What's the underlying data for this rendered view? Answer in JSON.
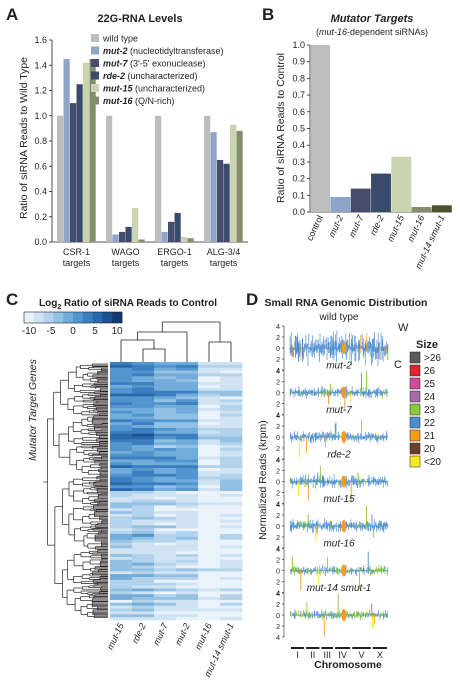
{
  "panels": {
    "A": {
      "letter": "A",
      "chart_data": {
        "type": "bar",
        "title": "22G-RNA Levels",
        "ylabel": "Ratio of siRNA Reads to Wild Type",
        "ylim": [
          0,
          1.6
        ],
        "yticks": [
          "0.0",
          "0.2",
          "0.4",
          "0.6",
          "0.8",
          "1.0",
          "1.2",
          "1.4",
          "1.6"
        ],
        "categories": [
          {
            "line1": "CSR-1",
            "line2": "targets"
          },
          {
            "line1": "WAGO",
            "line2": "targets"
          },
          {
            "line1": "ERGO-1",
            "line2": "targets"
          },
          {
            "line1": "ALG-3/4",
            "line2": "targets"
          }
        ],
        "series": [
          {
            "name": "wild type",
            "gene": "",
            "desc": "",
            "color": "#bdbdbd",
            "values": [
              1.0,
              1.0,
              1.0,
              1.0
            ]
          },
          {
            "name": "mut-2 (nucleotidyltransferase)",
            "gene": "mut-2",
            "desc": " (nucleotidyltransferase)",
            "color": "#8ea4c8",
            "values": [
              1.45,
              0.06,
              0.08,
              0.87
            ]
          },
          {
            "name": "mut-7 (3'-5' exonuclease)",
            "gene": "mut-7",
            "desc": " (3'-5' exonuclease)",
            "color": "#454d6b",
            "values": [
              1.1,
              0.08,
              0.16,
              0.65
            ]
          },
          {
            "name": "rde-2 (uncharacterized)",
            "gene": "rde-2",
            "desc": " (uncharacterized)",
            "color": "#3a4a6b",
            "values": [
              1.25,
              0.12,
              0.23,
              0.62
            ]
          },
          {
            "name": "mut-15 (uncharacterized)",
            "gene": "mut-15",
            "desc": " (uncharacterized)",
            "color": "#c9d4b0",
            "values": [
              1.42,
              0.27,
              0.04,
              0.93
            ]
          },
          {
            "name": "mut-16 (Q/N-rich)",
            "gene": "mut-16",
            "desc": " (Q/N-rich)",
            "color": "#858d6c",
            "values": [
              1.45,
              0.02,
              0.03,
              0.88
            ]
          }
        ]
      }
    },
    "B": {
      "letter": "B",
      "chart_data": {
        "type": "bar",
        "title": "Mutator Targets",
        "subtitle": {
          "gene": "mut-16",
          "text": "-dependent siRNAs)"
        },
        "ylabel": "Ratio of siRNA Reads to Control",
        "ylim": [
          0,
          1.0
        ],
        "yticks": [
          "0.0",
          "0.1",
          "0.2",
          "0.3",
          "0.4",
          "0.5",
          "0.6",
          "0.7",
          "0.8",
          "0.9",
          "1.0"
        ],
        "categories": [
          "control",
          "mut-2",
          "mut-7",
          "rde-2",
          "mut-15",
          "mut-16",
          "mut-14 smut-1"
        ],
        "values": [
          1.0,
          0.09,
          0.14,
          0.23,
          0.33,
          0.03,
          0.04
        ],
        "colors": [
          "#bdbdbd",
          "#8ea4c8",
          "#454d6b",
          "#3a4a6b",
          "#c9d4b0",
          "#858d6c",
          "#4b5230"
        ]
      }
    },
    "C": {
      "letter": "C",
      "chart_data": {
        "type": "heatmap",
        "title": {
          "prefix": "Log",
          "sub": "2",
          "suffix": " Ratio of siRNA Reads to Control"
        },
        "colorbar_ticks": [
          "-10",
          "-5",
          "0",
          "5",
          "10"
        ],
        "ylabel": "Mutator Target Genes",
        "columns": [
          "mut-15",
          "rde-2",
          "mut-7",
          "mut-2",
          "mut-16",
          "mut-14 smut-1"
        ]
      }
    },
    "D": {
      "letter": "D",
      "title": "Small RNA Genomic Distribution",
      "ylabel": "Normalized Reads (krpm)",
      "xlabel": "Chromosome",
      "chromosomes": [
        "I",
        "II",
        "III",
        "IV",
        "V",
        "X"
      ],
      "strand_labels": {
        "top": "W",
        "bottom": "C"
      },
      "yticks": [
        "4",
        "2",
        "0",
        "2",
        "4"
      ],
      "tracks": [
        "wild type",
        "mut-2",
        "mut-7",
        "rde-2",
        "mut-15",
        "mut-16",
        "mut-14 smut-1"
      ],
      "legend": {
        "title": "Size",
        "items": [
          {
            "label": ">26",
            "color": "#5b5b5b"
          },
          {
            "label": "26",
            "color": "#d7262c"
          },
          {
            "label": "25",
            "color": "#d2499b"
          },
          {
            "label": "24",
            "color": "#a768ad"
          },
          {
            "label": "23",
            "color": "#8dc63f"
          },
          {
            "label": "22",
            "color": "#4c8fcf"
          },
          {
            "label": "21",
            "color": "#f39c1f"
          },
          {
            "label": "20",
            "color": "#6b3e2a"
          },
          {
            "label": "<20",
            "color": "#f5ea20"
          }
        ]
      }
    }
  }
}
